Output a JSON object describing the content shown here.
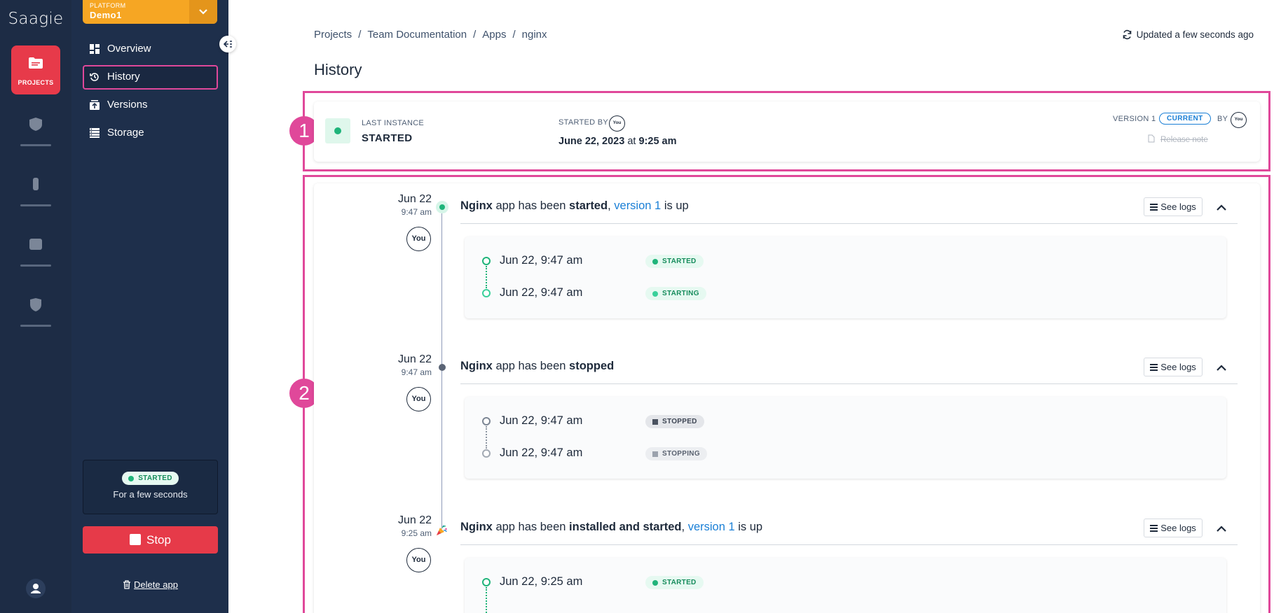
{
  "rail": {
    "logo": "Saagie",
    "projects_label": "PROJECTS"
  },
  "platform": {
    "caption": "PLATFORM",
    "name": "Demo1"
  },
  "nav": {
    "items": [
      {
        "label": "Overview",
        "icon": "dashboard-icon"
      },
      {
        "label": "History",
        "icon": "history-icon"
      },
      {
        "label": "Versions",
        "icon": "versions-icon"
      },
      {
        "label": "Storage",
        "icon": "storage-icon"
      }
    ],
    "active": "History"
  },
  "status_card": {
    "status": "STARTED",
    "duration": "For a few seconds"
  },
  "actions": {
    "stop_label": "Stop",
    "delete_label": "Delete app"
  },
  "breadcrumb": [
    "Projects",
    "Team Documentation",
    "Apps",
    "nginx"
  ],
  "updated": "Updated a few seconds ago",
  "page_title": "History",
  "annotations": [
    "1",
    "2"
  ],
  "last_instance": {
    "caption": "LAST INSTANCE",
    "status": "STARTED",
    "started_by_caption": "STARTED BY",
    "started_by_avatar": "You",
    "date": "June 22, 2023",
    "at": "at",
    "time": "9:25 am",
    "version_label": "VERSION 1",
    "current_badge": "CURRENT",
    "by_caption": "BY",
    "by_avatar": "You",
    "release_note": "Release note"
  },
  "events": [
    {
      "date": "Jun 22",
      "time": "9:47 am",
      "avatar": "You",
      "title_bold": "Nginx",
      "title_mid": "app has been",
      "title_action": "started",
      "title_comma": ",",
      "title_link": "version 1",
      "title_tail": "is up",
      "see_logs": "See logs",
      "steps": [
        {
          "date": "Jun 22, 9:47 am",
          "status": "STARTED"
        },
        {
          "date": "Jun 22, 9:47 am",
          "status": "STARTING"
        }
      ]
    },
    {
      "date": "Jun 22",
      "time": "9:47 am",
      "avatar": "You",
      "title_bold": "Nginx",
      "title_mid": "app has been",
      "title_action": "stopped",
      "see_logs": "See logs",
      "steps": [
        {
          "date": "Jun 22, 9:47 am",
          "status": "STOPPED"
        },
        {
          "date": "Jun 22, 9:47 am",
          "status": "STOPPING"
        }
      ]
    },
    {
      "date": "Jun 22",
      "time": "9:25 am",
      "avatar": "You",
      "title_bold": "Nginx",
      "title_mid": "app has been",
      "title_action": "installed and started",
      "title_comma": ",",
      "title_link": "version 1",
      "title_tail": "is up",
      "see_logs": "See logs",
      "steps": [
        {
          "date": "Jun 22, 9:25 am",
          "status": "STARTED"
        }
      ]
    }
  ],
  "colors": {
    "rail_bg": "#1d2c45",
    "sidebar_bg": "#1e2f4b",
    "accent_red": "#e63a49",
    "platform_orange": "#f6a623",
    "highlight_pink": "#e0489a",
    "status_green": "#1fb47a",
    "link_blue": "#1a7fd6"
  }
}
